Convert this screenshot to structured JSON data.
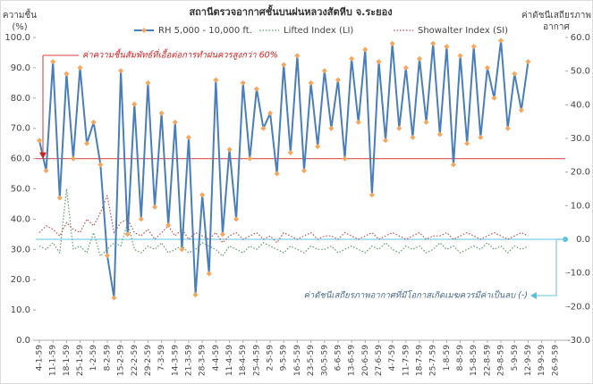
{
  "chart_data": {
    "type": "line",
    "title": "สถานีตรวจอากาศชั้นบนฝนหลวงสัตหีบ จ.ระยอง",
    "ylabel": [
      "ความชื้น",
      "(%)"
    ],
    "y2label": [
      "ค่าดัชนีเสถียรภาพ",
      "อากาศ"
    ],
    "categories": [
      "4-1-59",
      null,
      "11-1-59",
      null,
      "18-1-59",
      null,
      "25-1-59",
      null,
      "1-2-59",
      null,
      "8-2-59",
      null,
      "15-2-59",
      null,
      "22-2-59",
      null,
      "29-2-59",
      null,
      "7-3-59",
      null,
      "14-3-59",
      null,
      "21-3-59",
      null,
      "28-3-59",
      null,
      "4-4-59",
      null,
      "11-4-59",
      null,
      "18-4-59",
      null,
      "25-4-59",
      null,
      "2-5-59",
      null,
      "9-5-59",
      null,
      "16-5-59",
      null,
      "23-5-59",
      null,
      "30-5-59",
      null,
      "6-6-59",
      null,
      "13-6-59",
      null,
      "20-6-59",
      null,
      "27-6-59",
      null,
      "4-7-59",
      null,
      "11-7-59",
      null,
      "18-7-59",
      null,
      "25-7-59",
      null,
      "1-8-59",
      null,
      "8-8-59",
      null,
      "15-8-59",
      null,
      "22-8-59",
      null,
      "29-8-59",
      null,
      "5-9-59",
      null,
      "12-9-59",
      null,
      "19-9-59",
      null,
      "26-9-59",
      null
    ],
    "series": [
      {
        "name": "RH 5,000 - 10,000 ft.",
        "color": "#4a7ebb",
        "marker_color": "#f5a65b",
        "style": "solid",
        "axis": "y",
        "values": [
          66,
          56,
          92,
          47,
          88,
          60,
          90,
          65,
          72,
          58,
          28,
          14,
          89,
          35,
          78,
          40,
          85,
          44,
          75,
          38,
          72,
          30,
          67,
          15,
          48,
          22,
          86,
          35,
          63,
          40,
          85,
          60,
          83,
          70,
          75,
          55,
          91,
          62,
          94,
          56,
          85,
          64,
          89,
          70,
          86,
          60,
          93,
          72,
          96,
          48,
          92,
          66,
          98,
          70,
          90,
          67,
          93,
          72,
          98,
          68,
          97,
          58,
          94,
          65,
          97,
          67,
          90,
          80,
          99,
          70,
          88,
          76,
          92,
          null,
          null,
          null,
          null,
          null
        ]
      },
      {
        "name": "Lifted Index (LI)",
        "color": "#5a9e6a",
        "style": "dotted",
        "axis": "y2",
        "values": [
          -2,
          -3,
          -1,
          -4,
          15,
          -3,
          -2,
          -4,
          2,
          -5,
          -3,
          -1,
          -2,
          5,
          -3,
          -4,
          -2,
          -3,
          -1,
          -4,
          -3,
          -2,
          -4,
          -3,
          -1,
          -2,
          -3,
          -5,
          -2,
          -3,
          -4,
          -2,
          -3,
          -1,
          -2,
          -3,
          -4,
          -2,
          -3,
          -4,
          -2,
          -3,
          -3,
          -2,
          -4,
          -3,
          -2,
          -3,
          -4,
          -2,
          -3,
          -1,
          -3,
          -4,
          -2,
          -3,
          -2,
          -4,
          -3,
          -1,
          -3,
          -2,
          -4,
          -3,
          -2,
          -3,
          -1,
          -3,
          -2,
          -4,
          -2,
          -3,
          -2,
          null,
          null,
          null,
          null,
          null
        ]
      },
      {
        "name": "Showalter Index (SI)",
        "color": "#c0504d",
        "style": "dotted",
        "axis": "y2",
        "values": [
          2,
          4,
          3,
          1,
          5,
          3,
          2,
          6,
          4,
          8,
          13,
          2,
          5,
          6,
          2,
          1,
          3,
          0,
          2,
          4,
          1,
          3,
          0,
          2,
          1,
          0,
          2,
          -1,
          1,
          2,
          0,
          1,
          2,
          0,
          1,
          -1,
          2,
          1,
          0,
          1,
          2,
          0,
          1,
          1,
          0,
          2,
          1,
          0,
          1,
          2,
          0,
          1,
          2,
          1,
          0,
          1,
          2,
          0,
          1,
          1,
          2,
          0,
          1,
          2,
          1,
          0,
          1,
          2,
          1,
          0,
          1,
          2,
          1,
          null,
          null,
          null,
          null,
          null
        ]
      }
    ],
    "ylim": [
      0,
      100
    ],
    "yticks": [
      {
        "value": 0,
        "label": "0.0"
      },
      {
        "value": 10,
        "label": "10.0"
      },
      {
        "value": 20,
        "label": "20.0"
      },
      {
        "value": 30,
        "label": "30.0"
      },
      {
        "value": 40,
        "label": "40.0"
      },
      {
        "value": 50,
        "label": "50.0"
      },
      {
        "value": 60,
        "label": "60.0"
      },
      {
        "value": 70,
        "label": "70.0"
      },
      {
        "value": 80,
        "label": "80.0"
      },
      {
        "value": 90,
        "label": "90.0"
      },
      {
        "value": 100,
        "label": "100.0"
      }
    ],
    "y2lim": [
      -30,
      60
    ],
    "y2ticks": [
      {
        "value": -30,
        "label": "-30.0"
      },
      {
        "value": -20,
        "label": "-20.0"
      },
      {
        "value": -10,
        "label": "-10.0"
      },
      {
        "value": 0,
        "label": "0.0"
      },
      {
        "value": 10,
        "label": "10.0"
      },
      {
        "value": 20,
        "label": "20.0"
      },
      {
        "value": 30,
        "label": "30.0"
      },
      {
        "value": 40,
        "label": "40.0"
      },
      {
        "value": 50,
        "label": "50.0"
      },
      {
        "value": 60,
        "label": "60.0"
      }
    ],
    "legend": "top",
    "reference_lines": [
      {
        "value": 60,
        "axis": "y",
        "color": "#e06666",
        "label": "ค่าความชื้นสัมพัทธ์ที่เอื้อต่อการทำฝนควรสูงกว่า 60%"
      },
      {
        "value": 0,
        "axis": "y2",
        "color": "#7fd0e6",
        "label": "ค่าดัชนีเสถียรภาพอากาศที่มีโอกาสเกิดเมฆควรมีค่าเป็นลบ (-)"
      }
    ]
  }
}
